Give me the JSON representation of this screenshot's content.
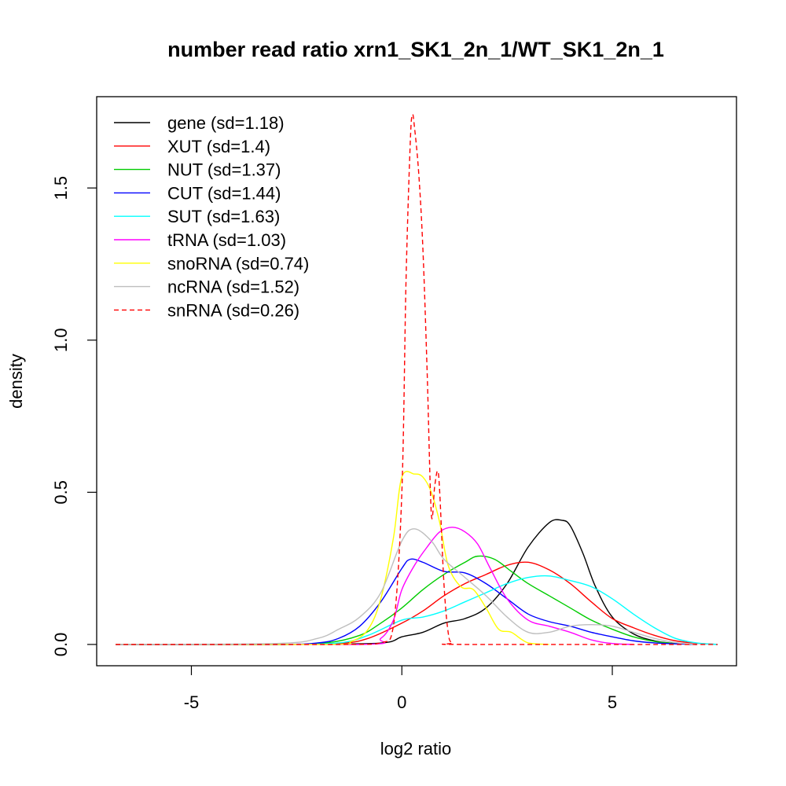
{
  "chart_data": {
    "type": "line",
    "title": "number read ratio xrn1_SK1_2n_1/WT_SK1_2n_1",
    "xlabel": "log2 ratio",
    "ylabel": "density",
    "xlim": [
      -7.25,
      7.95
    ],
    "ylim": [
      -0.07,
      1.8
    ],
    "xticks": [
      -5,
      0,
      5
    ],
    "yticks": [
      0.0,
      0.5,
      1.0,
      1.5
    ],
    "xtick_labels": [
      "-5",
      "0",
      "5"
    ],
    "ytick_labels": [
      "0.0",
      "0.5",
      "1.0",
      "1.5"
    ],
    "grid": false,
    "legend_position": "top-left",
    "series": [
      {
        "name": "gene (sd=1.18)",
        "color": "#000000",
        "dash": false,
        "x": [
          -6.8,
          -3.0,
          -1.0,
          -0.3,
          0,
          0.5,
          1.0,
          1.5,
          2.0,
          2.5,
          3.0,
          3.5,
          3.8,
          4.0,
          4.3,
          4.6,
          5.0,
          5.5,
          6.0,
          6.5,
          7.0
        ],
        "y": [
          0,
          0,
          0.002,
          0.008,
          0.025,
          0.04,
          0.07,
          0.085,
          0.12,
          0.2,
          0.32,
          0.4,
          0.408,
          0.39,
          0.3,
          0.19,
          0.09,
          0.035,
          0.012,
          0.003,
          0
        ]
      },
      {
        "name": "XUT (sd=1.4)",
        "color": "#ff0000",
        "dash": false,
        "x": [
          -6.8,
          -3.0,
          -1.5,
          -0.8,
          0,
          0.5,
          1.0,
          1.5,
          2.0,
          2.5,
          3.0,
          3.5,
          4.0,
          4.5,
          5.0,
          5.5,
          6.0,
          6.5,
          7.0,
          7.5
        ],
        "y": [
          0,
          0,
          0.003,
          0.02,
          0.07,
          0.11,
          0.16,
          0.2,
          0.23,
          0.26,
          0.27,
          0.245,
          0.2,
          0.14,
          0.085,
          0.055,
          0.03,
          0.012,
          0.004,
          0
        ]
      },
      {
        "name": "NUT (sd=1.37)",
        "color": "#00cc00",
        "dash": false,
        "x": [
          -6.8,
          -3.0,
          -1.8,
          -1.0,
          -0.5,
          0,
          0.5,
          1.0,
          1.5,
          1.8,
          2.2,
          2.6,
          3.0,
          3.5,
          4.0,
          4.5,
          5.0,
          5.5,
          6.0,
          6.5,
          7.0
        ],
        "y": [
          0,
          0,
          0.005,
          0.03,
          0.07,
          0.12,
          0.18,
          0.23,
          0.27,
          0.29,
          0.28,
          0.24,
          0.2,
          0.16,
          0.12,
          0.08,
          0.05,
          0.025,
          0.01,
          0.003,
          0
        ]
      },
      {
        "name": "CUT (sd=1.44)",
        "color": "#0000ff",
        "dash": false,
        "x": [
          -6.8,
          -3.0,
          -2.0,
          -1.5,
          -1.0,
          -0.5,
          0,
          0.2,
          0.5,
          1.0,
          1.5,
          2.0,
          2.5,
          3.0,
          3.5,
          4.0,
          4.5,
          5.0,
          5.5,
          6.0,
          6.5,
          7.0
        ],
        "y": [
          0,
          0,
          0.005,
          0.02,
          0.06,
          0.14,
          0.25,
          0.28,
          0.27,
          0.24,
          0.235,
          0.2,
          0.15,
          0.1,
          0.075,
          0.06,
          0.04,
          0.025,
          0.012,
          0.005,
          0.002,
          0
        ]
      },
      {
        "name": "SUT (sd=1.63)",
        "color": "#00ffff",
        "dash": false,
        "x": [
          -6.8,
          -3.0,
          -1.5,
          -0.8,
          0,
          0.5,
          1.0,
          1.5,
          2.0,
          2.5,
          3.0,
          3.5,
          4.0,
          4.5,
          5.0,
          5.5,
          6.0,
          6.5,
          7.0,
          7.5
        ],
        "y": [
          0,
          0,
          0.005,
          0.03,
          0.08,
          0.09,
          0.11,
          0.14,
          0.17,
          0.2,
          0.22,
          0.225,
          0.21,
          0.19,
          0.15,
          0.1,
          0.055,
          0.02,
          0.005,
          0
        ]
      },
      {
        "name": "tRNA (sd=1.03)",
        "color": "#ff00ff",
        "dash": false,
        "x": [
          -6.8,
          -1.0,
          -0.5,
          -0.2,
          0,
          0.3,
          0.6,
          0.9,
          1.2,
          1.5,
          1.8,
          2.1,
          2.5,
          3.0,
          3.5,
          4.0,
          4.5,
          5.0,
          5.5
        ],
        "y": [
          0,
          0,
          0.02,
          0.08,
          0.18,
          0.26,
          0.32,
          0.37,
          0.385,
          0.37,
          0.33,
          0.25,
          0.15,
          0.08,
          0.06,
          0.04,
          0.015,
          0.003,
          0
        ]
      },
      {
        "name": "snoRNA (sd=0.74)",
        "color": "#ffff00",
        "dash": false,
        "x": [
          -6.8,
          -1.8,
          -1.2,
          -0.8,
          -0.5,
          -0.2,
          0,
          0.3,
          0.5,
          0.7,
          0.9,
          1.1,
          1.4,
          1.7,
          2.0,
          2.3,
          2.6,
          3.0,
          3.5
        ],
        "y": [
          0,
          0,
          0.01,
          0.05,
          0.15,
          0.35,
          0.55,
          0.56,
          0.55,
          0.5,
          0.4,
          0.26,
          0.19,
          0.18,
          0.12,
          0.05,
          0.04,
          0.005,
          0
        ]
      },
      {
        "name": "ncRNA (sd=1.52)",
        "color": "#bebebe",
        "dash": false,
        "x": [
          -6.8,
          -3.0,
          -2.0,
          -1.5,
          -1.0,
          -0.5,
          0,
          0.3,
          0.7,
          1.0,
          1.5,
          2.0,
          2.5,
          3.0,
          3.5,
          4.0,
          4.5,
          5.0,
          5.5,
          6.0,
          6.5,
          7.0
        ],
        "y": [
          0,
          0.003,
          0.02,
          0.05,
          0.09,
          0.17,
          0.34,
          0.38,
          0.34,
          0.28,
          0.22,
          0.16,
          0.09,
          0.04,
          0.04,
          0.06,
          0.065,
          0.06,
          0.04,
          0.02,
          0.006,
          0
        ]
      },
      {
        "name": "snRNA (sd=0.26)",
        "color": "#ff0000",
        "dash": true,
        "x": [
          -6.8,
          -1.5,
          -0.5,
          -0.2,
          0,
          0.1,
          0.2,
          0.25,
          0.3,
          0.4,
          0.5,
          0.6,
          0.7,
          0.78,
          0.85,
          0.9,
          1.0,
          1.1,
          1.2,
          1.5,
          7.5
        ],
        "y": [
          0,
          0,
          0.005,
          0.06,
          0.5,
          1.2,
          1.65,
          1.74,
          1.7,
          1.55,
          1.3,
          0.9,
          0.43,
          0.52,
          0.57,
          0.5,
          0.2,
          0.04,
          0.005,
          0,
          0
        ]
      }
    ]
  }
}
